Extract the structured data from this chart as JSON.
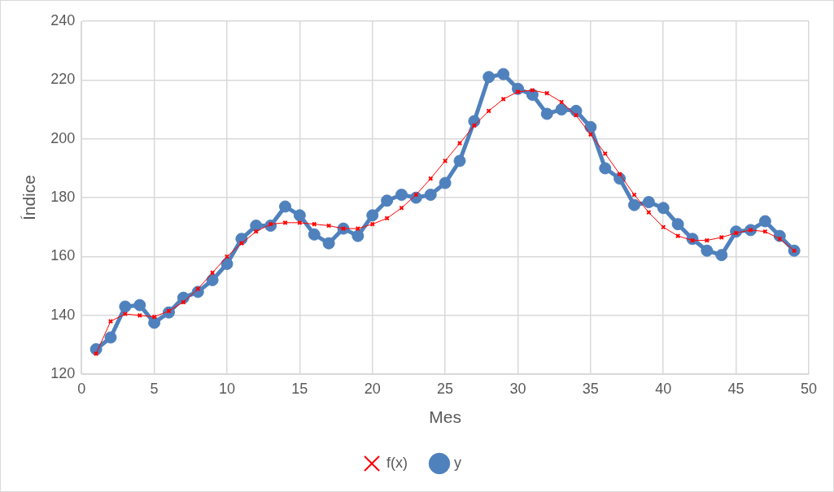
{
  "chart_data": {
    "type": "line",
    "xlabel": "Mes",
    "ylabel": "Índice",
    "x": [
      1,
      2,
      3,
      4,
      5,
      6,
      7,
      8,
      9,
      10,
      11,
      12,
      13,
      14,
      15,
      16,
      17,
      18,
      19,
      20,
      21,
      22,
      23,
      24,
      25,
      26,
      27,
      28,
      29,
      30,
      31,
      32,
      33,
      34,
      35,
      36,
      37,
      38,
      39,
      40,
      41,
      42,
      43,
      44,
      45,
      46,
      47,
      48,
      49
    ],
    "series": [
      {
        "name": "y",
        "color": "#4f81bd",
        "marker": "circle",
        "values": [
          128.5,
          132.5,
          143,
          143.5,
          137.5,
          141,
          146,
          148,
          152,
          157.5,
          166,
          170.5,
          170.5,
          177,
          174,
          167.5,
          164.5,
          169.5,
          167,
          174,
          179,
          181,
          180,
          181,
          185,
          192.5,
          206,
          221,
          222,
          217,
          215,
          208.5,
          210,
          209.5,
          204,
          190,
          186.5,
          177.5,
          178.5,
          176.5,
          171,
          166,
          162,
          160.5,
          168.5,
          169,
          172,
          167,
          162
        ]
      },
      {
        "name": "f(x)",
        "color": "#ff0000",
        "marker": "cross",
        "values": [
          127,
          138,
          140.5,
          140,
          139.5,
          141.5,
          144.5,
          149,
          154.5,
          160,
          164.5,
          168.5,
          171,
          171.5,
          171.5,
          171,
          170.5,
          169.5,
          169.5,
          171,
          173,
          176.5,
          181,
          186.5,
          192.5,
          198.5,
          204.5,
          209.5,
          213.5,
          216,
          216.5,
          215.5,
          212.5,
          208,
          201.5,
          195,
          188,
          181,
          175,
          170,
          167,
          165.5,
          165.5,
          166.5,
          168,
          169,
          168.5,
          166,
          162
        ]
      }
    ],
    "xlim": [
      0,
      50
    ],
    "xticks": [
      0,
      5,
      10,
      15,
      20,
      25,
      30,
      35,
      40,
      45,
      50
    ],
    "ylim": [
      120,
      240
    ],
    "yticks": [
      120,
      140,
      160,
      180,
      200,
      220,
      240
    ],
    "grid": true,
    "legend": "bottom"
  }
}
